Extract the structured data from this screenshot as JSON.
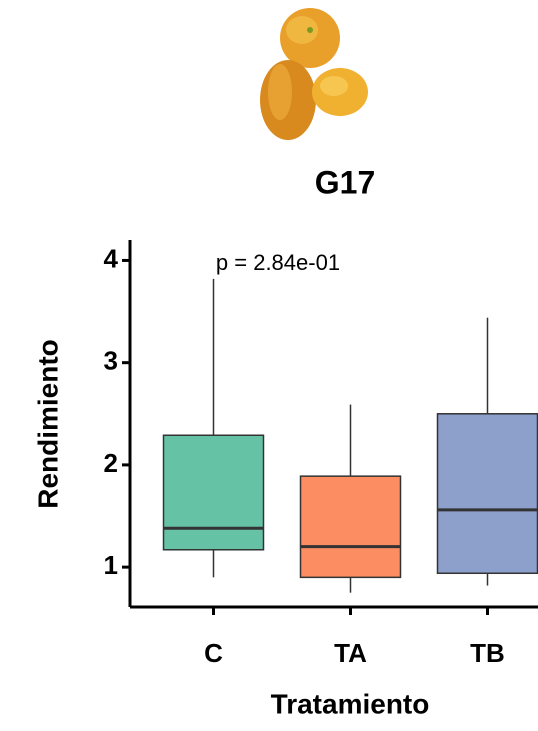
{
  "chart_data": {
    "type": "box",
    "title": "G17",
    "annotation": "p = 2.84e-01",
    "x_label": "Tratamiento",
    "y_label": "Rendimiento",
    "categories": [
      "C",
      "TA",
      "TB"
    ],
    "boxes": [
      {
        "min": 0.9,
        "q1": 1.17,
        "median": 1.38,
        "q3": 2.29,
        "max": 3.82,
        "color": "#66c2a5"
      },
      {
        "min": 0.75,
        "q1": 0.9,
        "median": 1.2,
        "q3": 1.89,
        "max": 2.59,
        "color": "#fc8d62"
      },
      {
        "min": 0.82,
        "q1": 0.94,
        "median": 1.56,
        "q3": 2.5,
        "max": 3.44,
        "color": "#8da0cb"
      }
    ],
    "ylim": [
      0.61,
      4.2
    ],
    "yticks": [
      1,
      2,
      3,
      4
    ]
  }
}
